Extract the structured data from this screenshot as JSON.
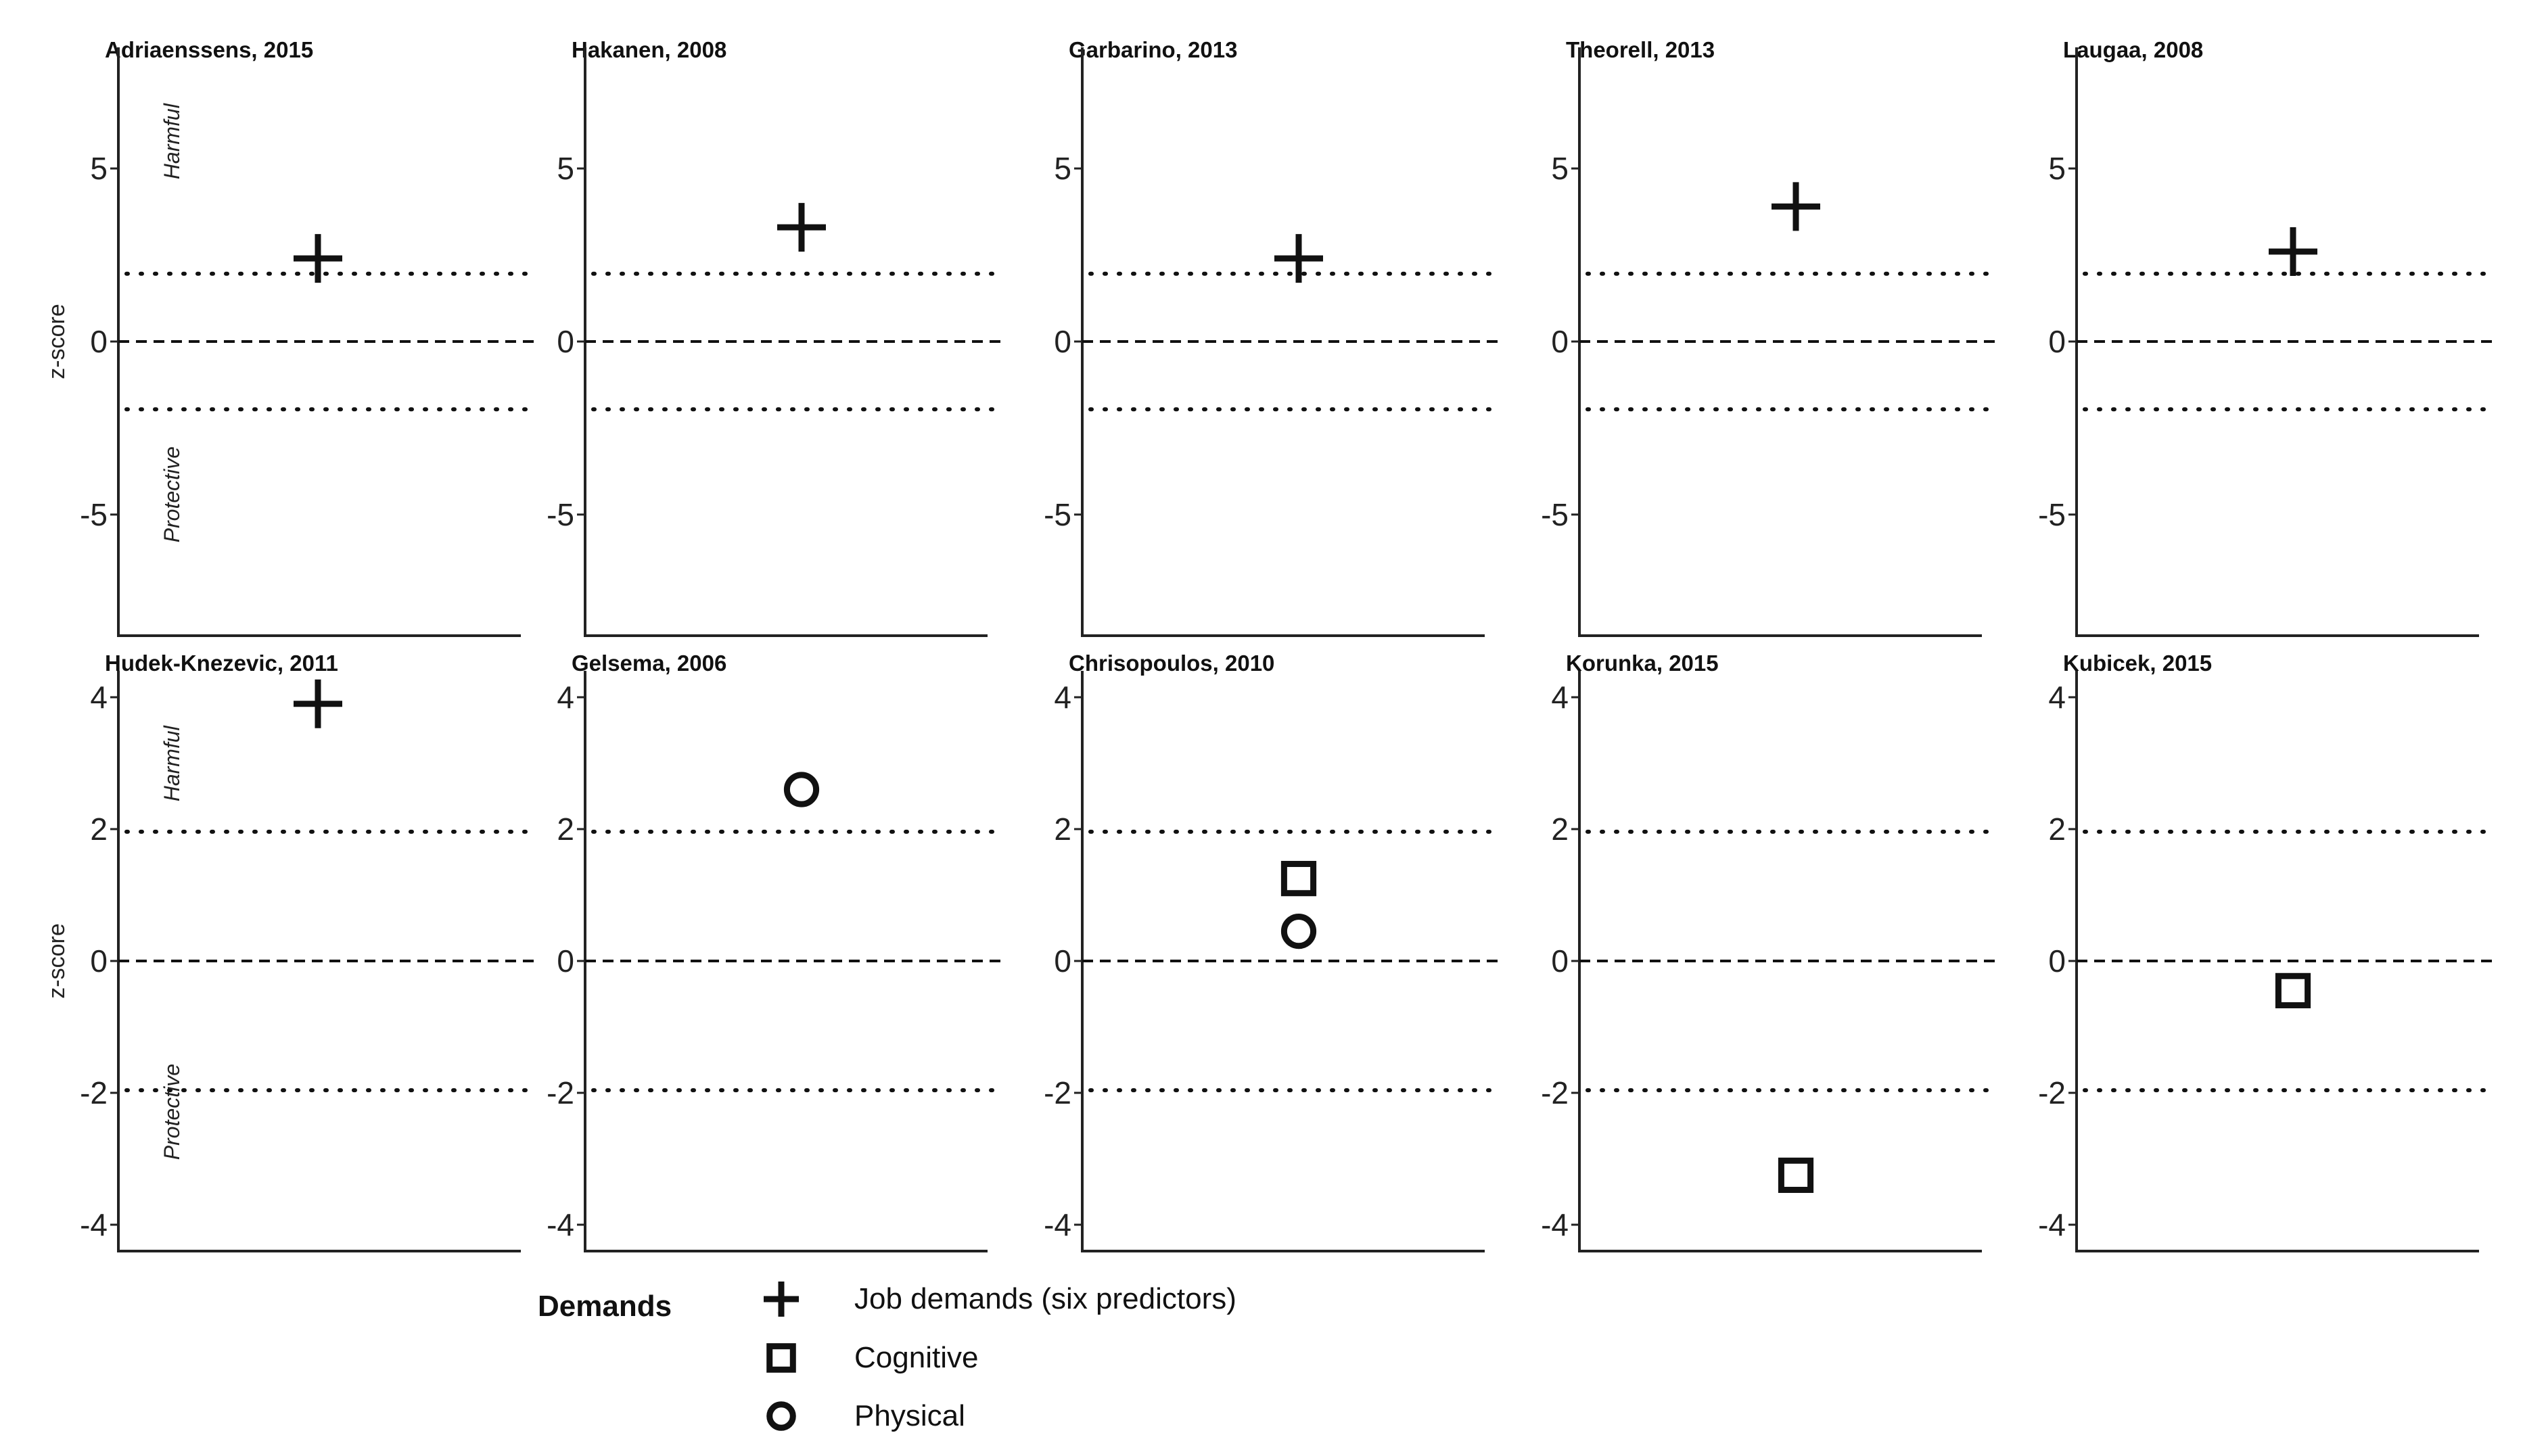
{
  "colors": {
    "ink": "#111111",
    "axis": "#222222",
    "background": "#ffffff"
  },
  "y_axis_label": "z-score",
  "region_labels": {
    "harmful": "Harmful",
    "protective": "Protective"
  },
  "legend": {
    "title": "Demands",
    "items": [
      {
        "key": "job_demands",
        "symbol": "plus-icon",
        "label": "Job demands  (six predictors)"
      },
      {
        "key": "cognitive",
        "symbol": "square-icon",
        "label": "Cognitive"
      },
      {
        "key": "physical",
        "symbol": "circle-icon",
        "label": "Physical"
      }
    ]
  },
  "chart_data": [
    {
      "type": "scatter",
      "title": "Adriaenssens, 2015",
      "ylabel": "z-score",
      "ylim": [
        -8.5,
        8.5
      ],
      "yticks": [
        -5,
        0,
        5
      ],
      "thresholds": [
        -1.96,
        1.96
      ],
      "region_labels": true,
      "points": [
        {
          "series": "job_demands",
          "y": 2.4
        }
      ]
    },
    {
      "type": "scatter",
      "title": "Hakanen, 2008",
      "ylabel": "",
      "ylim": [
        -8.5,
        8.5
      ],
      "yticks": [
        -5,
        0,
        5
      ],
      "thresholds": [
        -1.96,
        1.96
      ],
      "region_labels": false,
      "points": [
        {
          "series": "job_demands",
          "y": 3.3
        }
      ]
    },
    {
      "type": "scatter",
      "title": "Garbarino, 2013",
      "ylabel": "",
      "ylim": [
        -8.5,
        8.5
      ],
      "yticks": [
        -5,
        0,
        5
      ],
      "thresholds": [
        -1.96,
        1.96
      ],
      "region_labels": false,
      "points": [
        {
          "series": "job_demands",
          "y": 2.4
        }
      ]
    },
    {
      "type": "scatter",
      "title": "Theorell, 2013",
      "ylabel": "",
      "ylim": [
        -8.5,
        8.5
      ],
      "yticks": [
        -5,
        0,
        5
      ],
      "thresholds": [
        -1.96,
        1.96
      ],
      "region_labels": false,
      "points": [
        {
          "series": "job_demands",
          "y": 3.9
        }
      ]
    },
    {
      "type": "scatter",
      "title": "Laugaa, 2008",
      "ylabel": "",
      "ylim": [
        -8.5,
        8.5
      ],
      "yticks": [
        -5,
        0,
        5
      ],
      "thresholds": [
        -1.96,
        1.96
      ],
      "region_labels": false,
      "points": [
        {
          "series": "job_demands",
          "y": 2.6
        }
      ]
    },
    {
      "type": "scatter",
      "title": "Hudek-Knezevic, 2011",
      "ylabel": "z-score",
      "ylim": [
        -4.4,
        4.4
      ],
      "yticks": [
        -4,
        -2,
        0,
        2,
        4
      ],
      "thresholds": [
        -1.96,
        1.96
      ],
      "region_labels": true,
      "points": [
        {
          "series": "job_demands",
          "y": 3.9
        }
      ]
    },
    {
      "type": "scatter",
      "title": "Gelsema, 2006",
      "ylabel": "",
      "ylim": [
        -4.4,
        4.4
      ],
      "yticks": [
        -4,
        -2,
        0,
        2,
        4
      ],
      "thresholds": [
        -1.96,
        1.96
      ],
      "region_labels": false,
      "points": [
        {
          "series": "physical",
          "y": 2.6
        }
      ]
    },
    {
      "type": "scatter",
      "title": "Chrisopoulos, 2010",
      "ylabel": "",
      "ylim": [
        -4.4,
        4.4
      ],
      "yticks": [
        -4,
        -2,
        0,
        2,
        4
      ],
      "thresholds": [
        -1.96,
        1.96
      ],
      "region_labels": false,
      "points": [
        {
          "series": "cognitive",
          "y": 1.25
        },
        {
          "series": "physical",
          "y": 0.45
        }
      ]
    },
    {
      "type": "scatter",
      "title": "Korunka, 2015",
      "ylabel": "",
      "ylim": [
        -4.4,
        4.4
      ],
      "yticks": [
        -4,
        -2,
        0,
        2,
        4
      ],
      "thresholds": [
        -1.96,
        1.96
      ],
      "region_labels": false,
      "points": [
        {
          "series": "cognitive",
          "y": -3.25
        }
      ]
    },
    {
      "type": "scatter",
      "title": "Kubicek, 2015",
      "ylabel": "",
      "ylim": [
        -4.4,
        4.4
      ],
      "yticks": [
        -4,
        -2,
        0,
        2,
        4
      ],
      "thresholds": [
        -1.96,
        1.96
      ],
      "region_labels": false,
      "points": [
        {
          "series": "cognitive",
          "y": -0.45
        }
      ]
    }
  ]
}
